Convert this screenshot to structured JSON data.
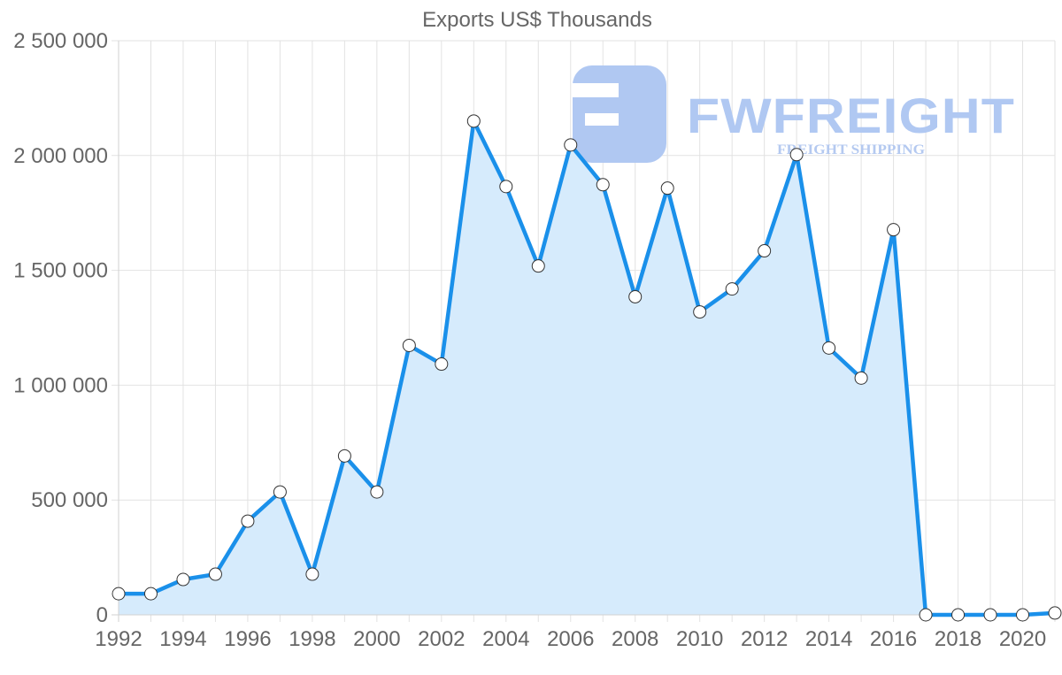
{
  "chart_data": {
    "type": "area",
    "title": "Exports US$ Thousands",
    "xlabel": "",
    "ylabel": "",
    "ylim": [
      0,
      2500000
    ],
    "grid": true,
    "legend": null,
    "y_ticks": [
      "0",
      "500 000",
      "1 000 000",
      "1 500 000",
      "2 000 000",
      "2 500 000"
    ],
    "y_tick_values": [
      0,
      500000,
      1000000,
      1500000,
      2000000,
      2500000
    ],
    "x_tick_labels": [
      "1992",
      "1994",
      "1996",
      "1998",
      "2000",
      "2002",
      "2004",
      "2006",
      "2008",
      "2010",
      "2012",
      "2014",
      "2016",
      "2018",
      "2020"
    ],
    "x": [
      1992,
      1993,
      1994,
      1995,
      1996,
      1997,
      1998,
      1999,
      2000,
      2001,
      2002,
      2003,
      2004,
      2005,
      2006,
      2007,
      2008,
      2009,
      2010,
      2011,
      2012,
      2013,
      2014,
      2015,
      2016,
      2017,
      2018,
      2019,
      2020,
      2021
    ],
    "series": [
      {
        "name": "Exports US$ Thousands",
        "values": [
          92000,
          92000,
          154000,
          177000,
          408000,
          535000,
          177000,
          692000,
          535000,
          1173000,
          1092000,
          2150000,
          1865000,
          1519000,
          2046000,
          1873000,
          1385000,
          1858000,
          1319000,
          1419000,
          1585000,
          2004000,
          1162000,
          1031000,
          1677000,
          0,
          0,
          0,
          0,
          8000
        ],
        "line_color": "#1a90ea",
        "fill_color": "#d6ebfc"
      }
    ]
  },
  "watermark": {
    "brand": "FWFREIGHT",
    "tagline": "FREIGHT SHIPPING",
    "color": "#b0c8f2"
  }
}
